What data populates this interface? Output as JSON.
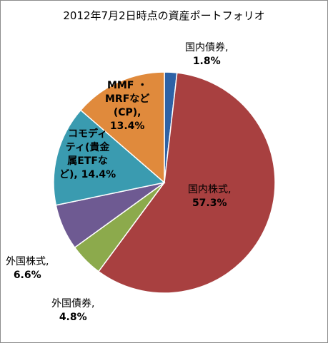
{
  "chart_data": {
    "type": "pie",
    "title": "2012年7月2日時点の資産ポートフォリオ",
    "slices": [
      {
        "name": "国内債券",
        "value": 1.8,
        "color": "#2e62a6",
        "label_lines": [
          "国内債券,",
          "1.8%"
        ]
      },
      {
        "name": "国内株式",
        "value": 57.3,
        "color": "#a84040",
        "label_lines": [
          "国内株式,",
          "57.3%"
        ]
      },
      {
        "name": "外国債券",
        "value": 4.8,
        "color": "#8caa4c",
        "label_lines": [
          "外国債券,",
          "4.8%"
        ]
      },
      {
        "name": "外国株式",
        "value": 6.6,
        "color": "#6e5a92",
        "label_lines": [
          "外国株式,",
          "6.6%"
        ]
      },
      {
        "name": "コモディティ(貴金属ETFなど)",
        "value": 14.4,
        "color": "#3a9bb0",
        "label_lines": [
          "コモディ",
          "ティ(貴金",
          "属ETFな",
          "ど), 14.4%"
        ]
      },
      {
        "name": "MMF・MRFなど(CP)",
        "value": 13.4,
        "color": "#e08a3c",
        "label_lines": [
          "MMF ・",
          "MRFなど",
          "(CP),",
          "13.4%"
        ]
      }
    ]
  }
}
